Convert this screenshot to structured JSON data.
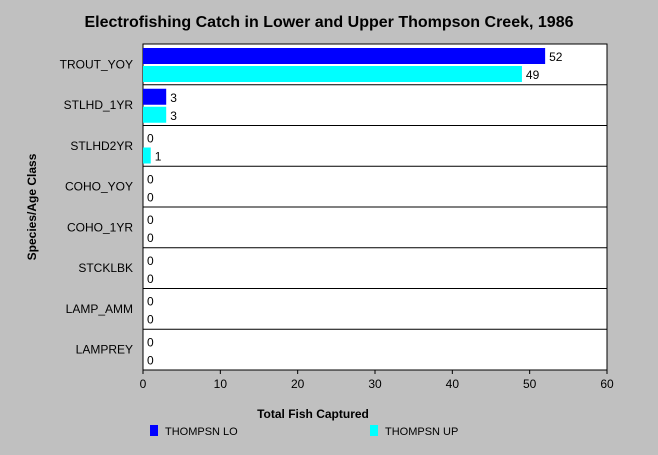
{
  "chart_data": {
    "type": "bar",
    "orientation": "horizontal",
    "title": "Electrofishing Catch in Lower and Upper Thompson Creek, 1986",
    "xlabel": "Total Fish Captured",
    "ylabel": "Species/Age Class",
    "xlim": [
      0,
      60
    ],
    "xticks": [
      0,
      10,
      20,
      30,
      40,
      50,
      60
    ],
    "grid": "horizontal separators",
    "legend_position": "bottom",
    "categories": [
      "TROUT_YOY",
      "STLHD_1YR",
      "STLHD2YR",
      "COHO_YOY",
      "COHO_1YR",
      "STCKLBK",
      "LAMP_AMM",
      "LAMPREY"
    ],
    "series": [
      {
        "name": "THOMPSN LO",
        "color": "#0000ff",
        "values": [
          52,
          3,
          0,
          0,
          0,
          0,
          0,
          0
        ]
      },
      {
        "name": "THOMPSN UP",
        "color": "#00ffff",
        "values": [
          49,
          3,
          1,
          0,
          0,
          0,
          0,
          0
        ]
      }
    ]
  }
}
